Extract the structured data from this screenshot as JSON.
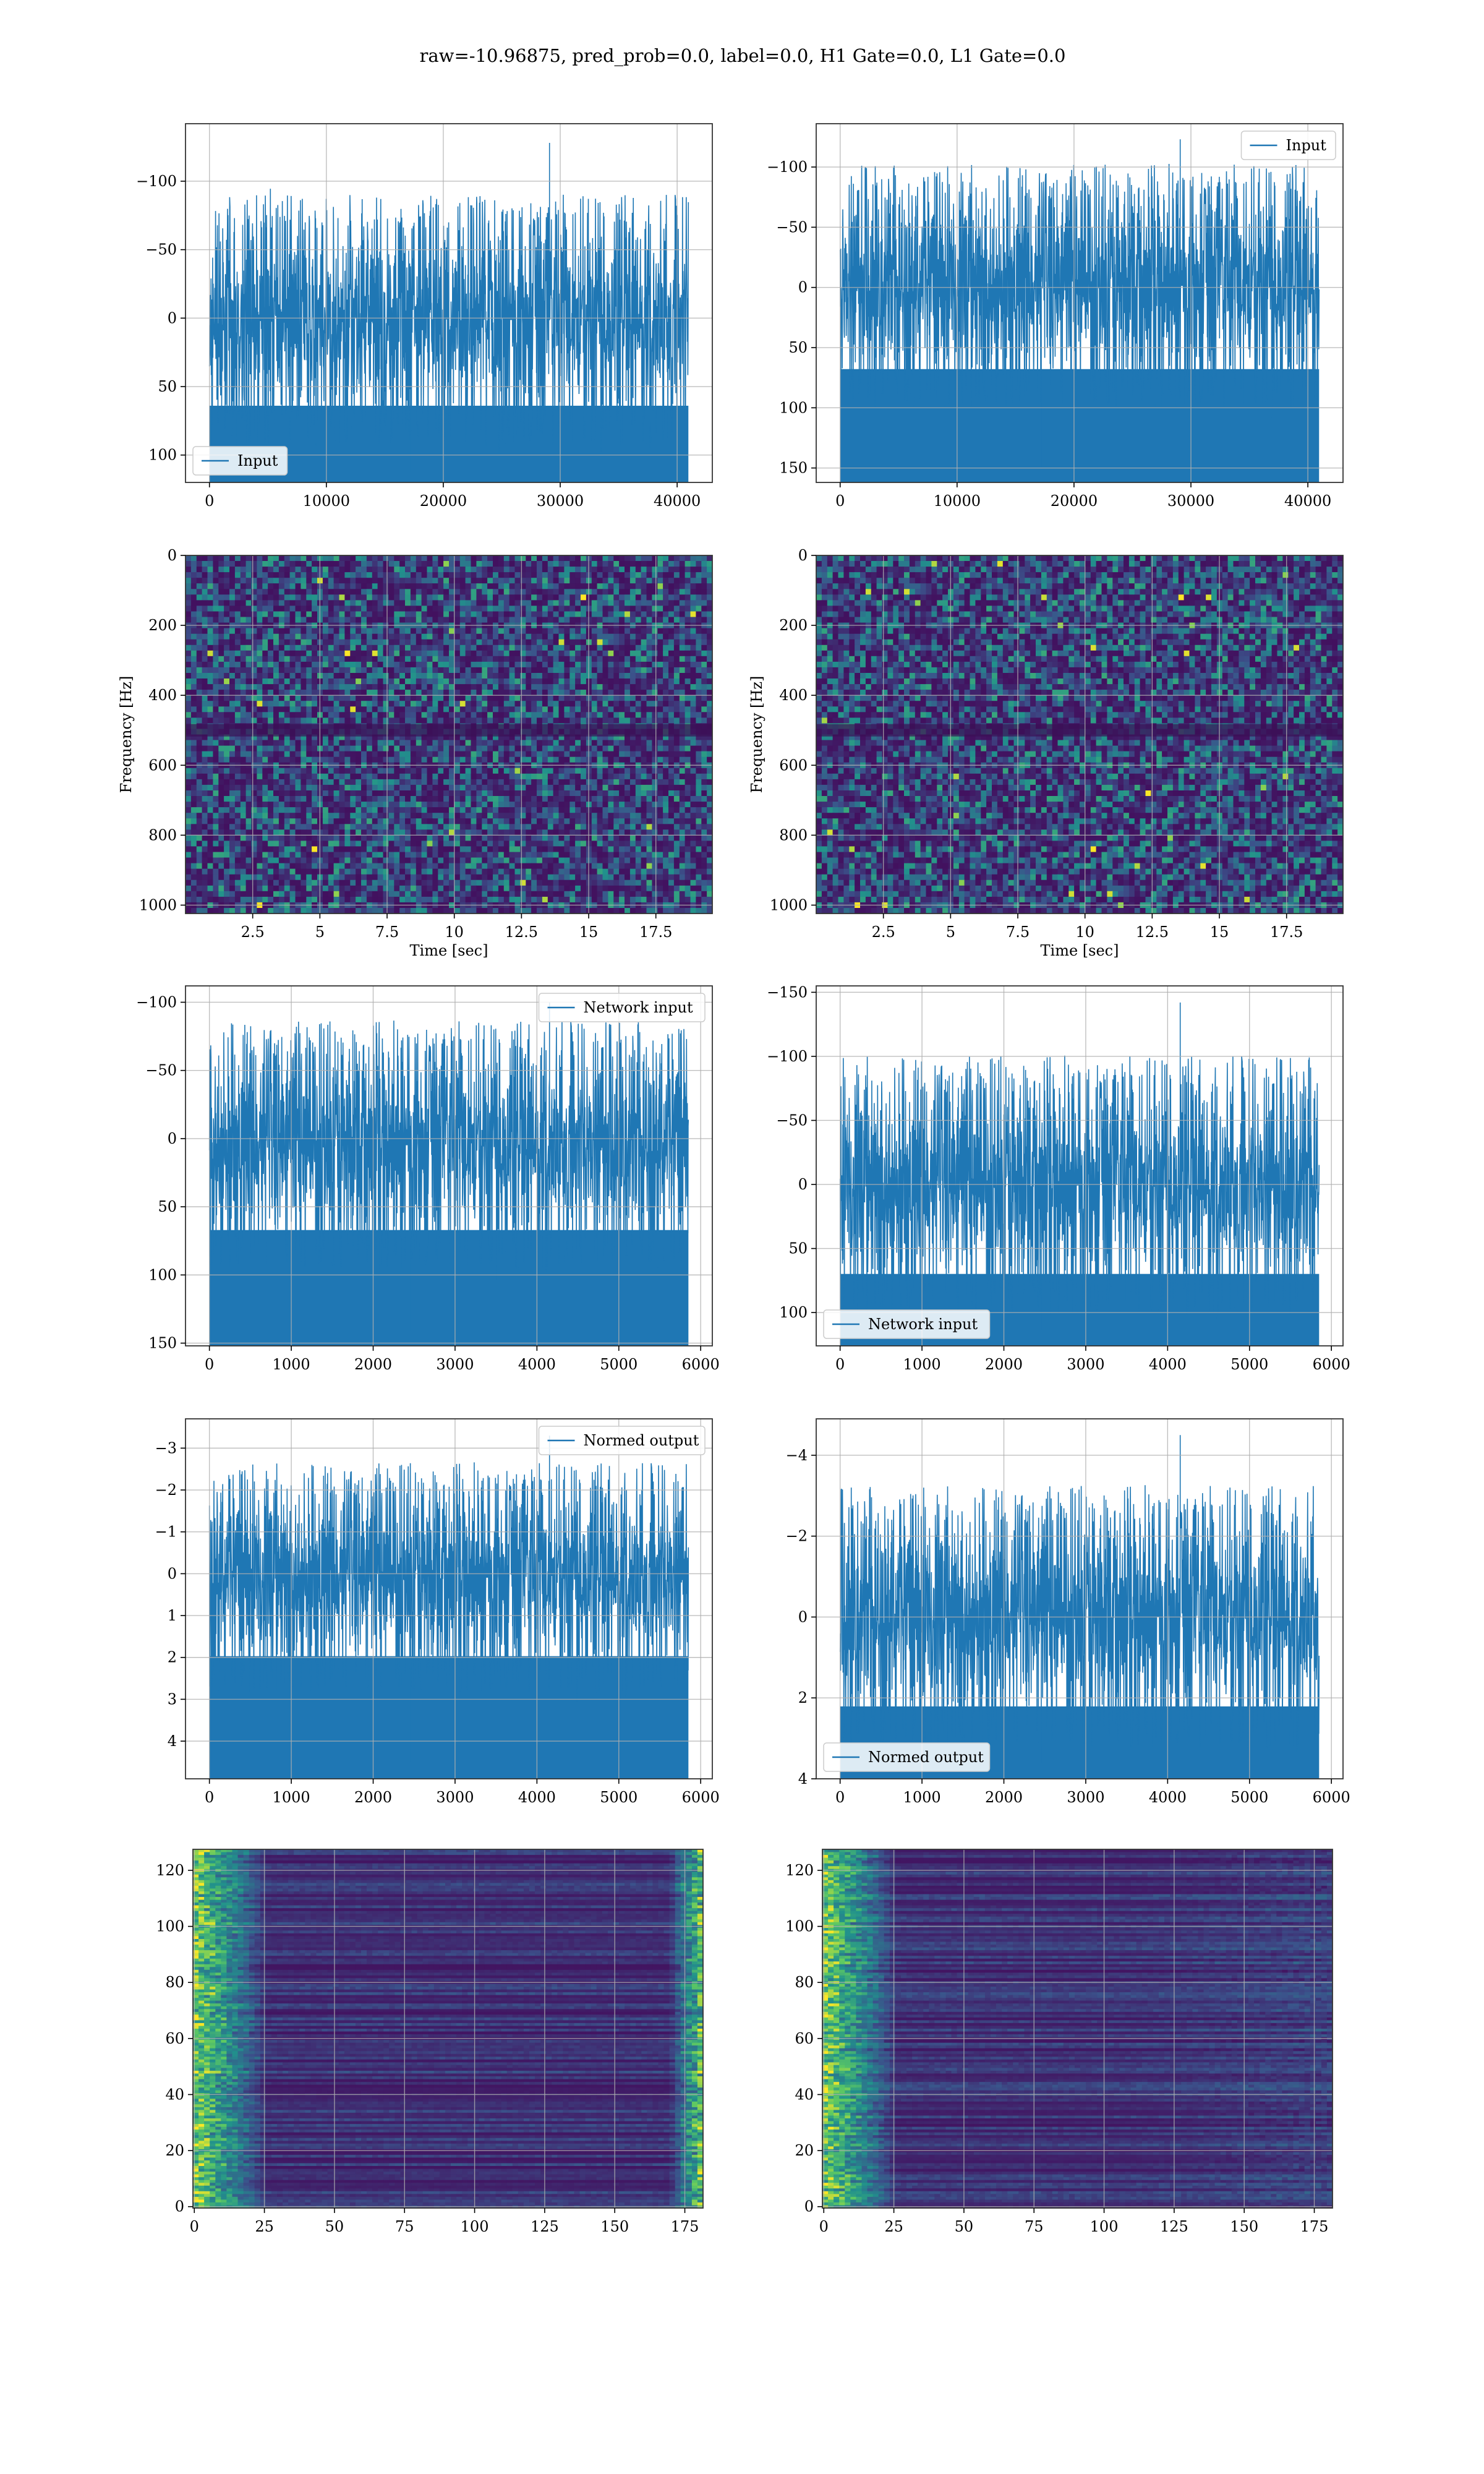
{
  "figure": {
    "suptitle": "raw=-10.96875, pred_prob=0.0, label=0.0, H1 Gate=0.0, L1 Gate=0.0"
  },
  "colors": {
    "line": "#1f77b4",
    "grid": "#b0b0b0",
    "axes_edge": "#000000",
    "viridis_low": "#3b0f58",
    "viridis_mid": "#2a7f8e",
    "viridis_high": "#fde725"
  },
  "chart_data": [
    {
      "id": "h1-input",
      "type": "line",
      "series": [
        {
          "name": "Input",
          "x_range": [
            0,
            40960
          ],
          "y_range": [
            -128,
            112
          ],
          "typical_amplitude": [
            -72,
            75
          ],
          "samples": 40960
        }
      ],
      "x_ticks": [
        0,
        10000,
        20000,
        30000,
        40000
      ],
      "y_ticks": [
        -100,
        -50,
        0,
        50,
        100
      ],
      "xlim": [
        -2048,
        43008
      ],
      "ylim": [
        -142,
        120
      ],
      "legend_position": "lower-left",
      "grid": true
    },
    {
      "id": "l1-input",
      "type": "line",
      "series": [
        {
          "name": "Input",
          "x_range": [
            0,
            40960
          ],
          "y_range": [
            -123,
            149
          ],
          "typical_amplitude": [
            -82,
            80
          ],
          "samples": 40960
        }
      ],
      "x_ticks": [
        0,
        10000,
        20000,
        30000,
        40000
      ],
      "y_ticks": [
        -100,
        -50,
        0,
        50,
        100,
        150
      ],
      "xlim": [
        -2048,
        43008
      ],
      "ylim": [
        -136,
        162
      ],
      "legend_position": "upper-right",
      "grid": true
    },
    {
      "id": "h1-spectrogram",
      "type": "heatmap",
      "x_ticks": [
        2.5,
        5.0,
        7.5,
        10.0,
        12.5,
        15.0,
        17.5
      ],
      "y_ticks": [
        0,
        200,
        400,
        600,
        800,
        1000
      ],
      "xlim": [
        0,
        19.6
      ],
      "ylim": [
        0,
        1024
      ],
      "xlabel": "Time [sec]",
      "ylabel": "Frequency [Hz]",
      "colormap": "viridis",
      "dark_bands_hz": [
        500
      ],
      "grid": true
    },
    {
      "id": "l1-spectrogram",
      "type": "heatmap",
      "x_ticks": [
        2.5,
        5.0,
        7.5,
        10.0,
        12.5,
        15.0,
        17.5
      ],
      "y_ticks": [
        0,
        200,
        400,
        600,
        800,
        1000
      ],
      "xlim": [
        0,
        19.6
      ],
      "ylim": [
        0,
        1024
      ],
      "xlabel": "Time [sec]",
      "ylabel": "Frequency [Hz]",
      "colormap": "viridis",
      "dark_bands_hz": [
        500
      ],
      "grid": true
    },
    {
      "id": "h1-network-input",
      "type": "line",
      "series": [
        {
          "name": "Network input",
          "x_range": [
            0,
            5850
          ],
          "y_range": [
            -100,
            141
          ],
          "typical_amplitude": [
            -68,
            78
          ],
          "samples": 5850
        }
      ],
      "x_ticks": [
        0,
        1000,
        2000,
        3000,
        4000,
        5000,
        6000
      ],
      "y_ticks": [
        -100,
        -50,
        0,
        50,
        100,
        150
      ],
      "xlim": [
        -292,
        6142
      ],
      "ylim": [
        -112,
        152
      ],
      "legend_position": "upper-right",
      "grid": true
    },
    {
      "id": "l1-network-input",
      "type": "line",
      "series": [
        {
          "name": "Network input",
          "x_range": [
            0,
            5850
          ],
          "y_range": [
            -142,
            113
          ],
          "typical_amplitude": [
            -80,
            82
          ],
          "samples": 5850
        }
      ],
      "x_ticks": [
        0,
        1000,
        2000,
        3000,
        4000,
        5000,
        6000
      ],
      "y_ticks": [
        -150,
        -100,
        -50,
        0,
        50,
        100
      ],
      "xlim": [
        -292,
        6142
      ],
      "ylim": [
        -155,
        126
      ],
      "legend_position": "lower-left",
      "grid": true
    },
    {
      "id": "h1-normed-output",
      "type": "line",
      "series": [
        {
          "name": "Normed output",
          "x_range": [
            0,
            5850
          ],
          "y_range": [
            -3.3,
            4.5
          ],
          "typical_amplitude": [
            -2.1,
            2.3
          ],
          "samples": 5850
        }
      ],
      "x_ticks": [
        0,
        1000,
        2000,
        3000,
        4000,
        5000,
        6000
      ],
      "y_ticks": [
        -3,
        -2,
        -1,
        0,
        1,
        2,
        3,
        4
      ],
      "xlim": [
        -292,
        6142
      ],
      "ylim": [
        -3.7,
        4.9
      ],
      "legend_position": "upper-right",
      "grid": true
    },
    {
      "id": "l1-normed-output",
      "type": "line",
      "series": [
        {
          "name": "Normed output",
          "x_range": [
            0,
            5850
          ],
          "y_range": [
            -4.5,
            3.6
          ],
          "typical_amplitude": [
            -2.6,
            2.6
          ],
          "samples": 5850
        }
      ],
      "x_ticks": [
        0,
        1000,
        2000,
        3000,
        4000,
        5000,
        6000
      ],
      "y_ticks": [
        -4,
        -2,
        0,
        2,
        4
      ],
      "xlim": [
        -292,
        6142
      ],
      "ylim": [
        -4.9,
        4.0
      ],
      "legend_position": "lower-left",
      "grid": true
    },
    {
      "id": "h1-feature-map",
      "type": "heatmap",
      "x_ticks": [
        0,
        25,
        50,
        75,
        100,
        125,
        150,
        175
      ],
      "y_ticks": [
        0,
        20,
        40,
        60,
        80,
        100,
        120
      ],
      "xlim": [
        -0.5,
        181.5
      ],
      "ylim": [
        127.5,
        -0.5
      ],
      "rows": 128,
      "columns": 182,
      "colormap": "viridis",
      "bright_regions": [
        "left edge (x 0-25)",
        "right edge (x 170-182)"
      ],
      "grid": true
    },
    {
      "id": "l1-feature-map",
      "type": "heatmap",
      "x_ticks": [
        0,
        25,
        50,
        75,
        100,
        125,
        150,
        175
      ],
      "y_ticks": [
        0,
        20,
        40,
        60,
        80,
        100,
        120
      ],
      "xlim": [
        -0.5,
        181.5
      ],
      "ylim": [
        127.5,
        -0.5
      ],
      "rows": 128,
      "columns": 182,
      "colormap": "viridis",
      "bright_regions": [
        "left edge (x 0-15)"
      ],
      "grid": true
    }
  ]
}
